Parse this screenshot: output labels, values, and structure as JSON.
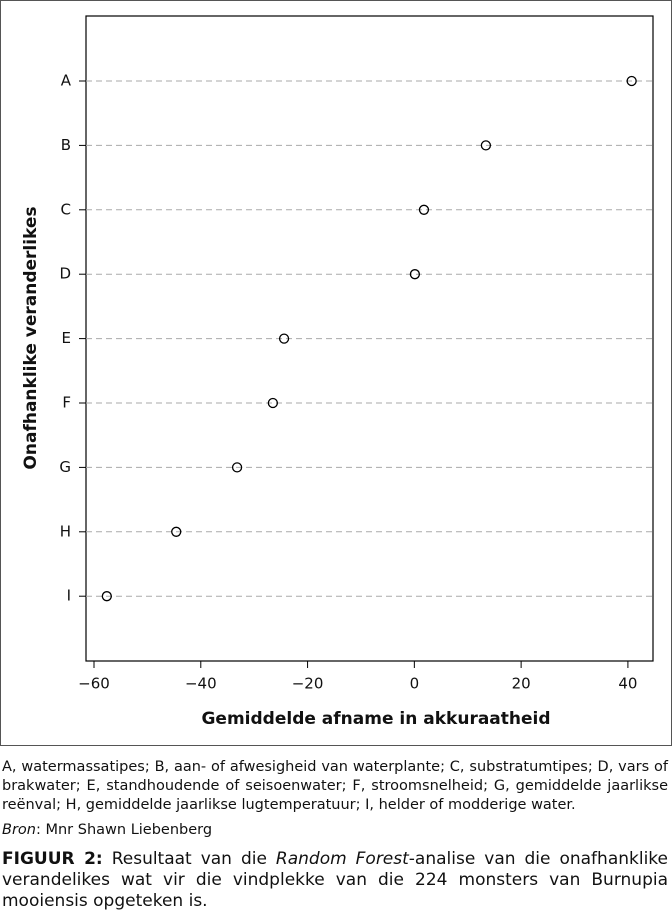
{
  "chart_data": {
    "type": "dot",
    "categories": [
      "A",
      "B",
      "C",
      "D",
      "E",
      "F",
      "G",
      "H",
      "I"
    ],
    "values": [
      40.7,
      13.4,
      1.8,
      0.1,
      -24.4,
      -26.5,
      -33.2,
      -44.6,
      -57.6
    ],
    "xlabel": "Gemiddelde afname in akkuraatheid",
    "ylabel": "Onafhanklike veranderlikes",
    "xlim": [
      -61.5,
      44.7
    ],
    "xticks": [
      {
        "value": -60,
        "label": "−60"
      },
      {
        "value": -40,
        "label": "−40"
      },
      {
        "value": -20,
        "label": "−20"
      },
      0,
      20,
      40
    ],
    "grid": true
  },
  "notes": "A, watermassatipes; B, aan- of afwesigheid van waterplante; C, substratumtipes; D, vars of brakwater; E, standhoudende of seisoenwater; F, stroomsnelheid; G, gemiddelde jaarlikse reënval; H, gemiddelde jaarlikse lugtemperatuur; I, helder of modderige water.",
  "source": {
    "label": "Bron",
    "text": ": Mnr Shawn Liebenberg"
  },
  "caption": {
    "label": "FIGUUR 2:",
    "parts": [
      " Resultaat van die ",
      "Random Forest",
      "-analise van die onafhanklike verandelikes wat vir die vindplekke van die 224 monsters van Burnupia mooiensis opgeteken is."
    ]
  }
}
